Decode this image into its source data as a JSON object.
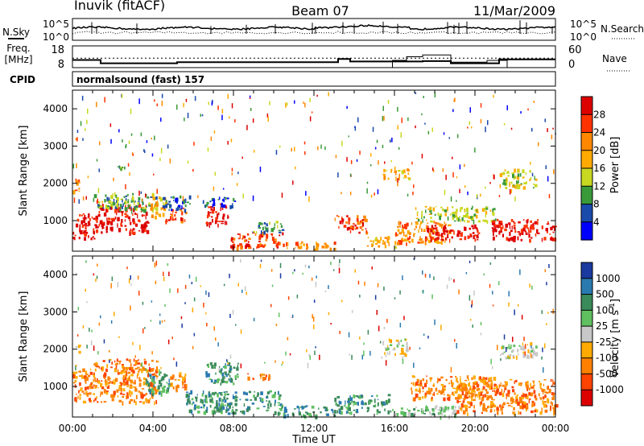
{
  "header": {
    "station": "Inuvik (fitACF)",
    "beam": "Beam 07",
    "date": "11/Mar/2009"
  },
  "chart_data": [
    {
      "type": "line",
      "panel": "noise",
      "left_label": "N.Sky",
      "right_label": "N.Search",
      "left_ticks": [
        "10^5",
        "10^0"
      ],
      "right_ticks": [
        "10^5",
        "10^0"
      ],
      "yscale": "log"
    },
    {
      "type": "line",
      "panel": "frequency",
      "left_label_line1": "Freq.",
      "left_label_line2": "[MHz]",
      "right_label": "Nave",
      "left_ticks": [
        18,
        8
      ],
      "right_ticks": [
        60,
        0
      ],
      "freq_ylim": [
        8,
        18
      ],
      "nave_ylim": [
        0,
        60
      ],
      "freq_series": {
        "x": [
          0,
          1.4,
          1.4,
          5.2,
          5.2,
          13.2,
          13.2,
          13.8,
          13.8,
          17.4,
          17.4,
          18.8,
          18.8,
          21.2,
          21.2,
          24
        ],
        "y": [
          11.5,
          11.5,
          10.0,
          10.0,
          10.5,
          10.5,
          12.0,
          12.0,
          10.8,
          10.8,
          11.0,
          11.0,
          10.0,
          10.0,
          11.8,
          11.8
        ]
      },
      "nave_series": {
        "x": [
          0,
          15.9,
          15.9,
          16.6,
          16.6,
          17.4,
          17.4,
          18.8,
          18.8,
          20.6,
          20.6,
          21.6,
          21.6,
          24
        ],
        "y": [
          0,
          0,
          20,
          20,
          30,
          30,
          35,
          35,
          15,
          15,
          20,
          20,
          0,
          0
        ]
      },
      "nave_reference": 26
    },
    {
      "type": "table",
      "panel": "cpid",
      "label": "CPID",
      "program": "normalsound (fast) 157"
    },
    {
      "type": "heatmap",
      "panel": "power",
      "ylabel": "Slant Range [km]",
      "yticks": [
        1000,
        2000,
        3000,
        4000
      ],
      "ylim": [
        180,
        4500
      ],
      "xlim": [
        0,
        24
      ],
      "colorbar": {
        "label": "Power [dB]",
        "ticks": [
          "28",
          "24",
          "20",
          "16",
          "12",
          "8",
          "4"
        ],
        "colors": [
          "#dd0000",
          "#ff3300",
          "#ff8800",
          "#ffaa00",
          "#c8d820",
          "#3a9a3a",
          "#1a4aaa",
          "#0000ff"
        ]
      },
      "regions": [
        {
          "t0": 0.0,
          "t1": 1.3,
          "r0": 500,
          "r1": 1200,
          "level": 0
        },
        {
          "t0": 0.0,
          "t1": 0.3,
          "r0": 1800,
          "r1": 2300,
          "level": 2
        },
        {
          "t0": 1.3,
          "t1": 3.8,
          "r0": 700,
          "r1": 1450,
          "level": 0
        },
        {
          "t0": 1.0,
          "t1": 4.2,
          "r0": 1300,
          "r1": 1750,
          "level": 5
        },
        {
          "t0": 3.8,
          "t1": 4.6,
          "r0": 1100,
          "r1": 1700,
          "level": 3
        },
        {
          "t0": 4.6,
          "t1": 5.6,
          "r0": 1000,
          "r1": 1400,
          "level": 1
        },
        {
          "t0": 4.4,
          "t1": 5.8,
          "r0": 1300,
          "r1": 1700,
          "level": 6
        },
        {
          "t0": 6.6,
          "t1": 7.7,
          "r0": 900,
          "r1": 1500,
          "level": 0
        },
        {
          "t0": 6.4,
          "t1": 8.1,
          "r0": 1400,
          "r1": 1650,
          "level": 6
        },
        {
          "t0": 7.8,
          "t1": 10.6,
          "r0": 300,
          "r1": 700,
          "level": 1
        },
        {
          "t0": 8.8,
          "t1": 10.4,
          "r0": 700,
          "r1": 1000,
          "level": 5
        },
        {
          "t0": 10.6,
          "t1": 13.0,
          "r0": 250,
          "r1": 450,
          "level": 2
        },
        {
          "t0": 13.0,
          "t1": 14.6,
          "r0": 700,
          "r1": 1150,
          "level": 1
        },
        {
          "t0": 14.6,
          "t1": 16.0,
          "r0": 300,
          "r1": 600,
          "level": 3
        },
        {
          "t0": 15.3,
          "t1": 16.7,
          "r0": 2100,
          "r1": 2400,
          "level": 3
        },
        {
          "t0": 16.0,
          "t1": 18.8,
          "r0": 400,
          "r1": 1000,
          "level": 2
        },
        {
          "t0": 17.5,
          "t1": 20.2,
          "r0": 500,
          "r1": 900,
          "level": 0
        },
        {
          "t0": 17.0,
          "t1": 21.0,
          "r0": 1000,
          "r1": 1400,
          "level": 4
        },
        {
          "t0": 20.8,
          "t1": 24.0,
          "r0": 500,
          "r1": 1050,
          "level": 0
        },
        {
          "t0": 21.2,
          "t1": 23.0,
          "r0": 1900,
          "r1": 2400,
          "level": 4
        },
        {
          "t0": 2.2,
          "t1": 2.6,
          "r0": 2400,
          "r1": 2500,
          "level": 5
        }
      ]
    },
    {
      "type": "heatmap",
      "panel": "velocity",
      "ylabel": "Slant Range [km]",
      "yticks": [
        1000,
        2000,
        3000,
        4000
      ],
      "ylim": [
        180,
        4500
      ],
      "xlim": [
        0,
        24
      ],
      "xlabel": "Time UT",
      "xticks": [
        "00:00",
        "04:00",
        "08:00",
        "12:00",
        "16:00",
        "20:00",
        "00:00"
      ],
      "colorbar": {
        "label": "Velocity [m s^-1]",
        "ticks": [
          "1000",
          "500",
          "100",
          "25",
          "-25",
          "-100",
          "-500",
          "-1000"
        ],
        "colors": [
          "#1a3aa0",
          "#2a7ab0",
          "#3a8a5a",
          "#60c060",
          "#c8c8c8",
          "#ffaa00",
          "#ff8000",
          "#ff4400",
          "#dd0000"
        ]
      },
      "regions": [
        {
          "t0": 0.0,
          "t1": 4.2,
          "r0": 600,
          "r1": 1500,
          "level": 6
        },
        {
          "t0": 1.0,
          "t1": 4.4,
          "r0": 1450,
          "r1": 1750,
          "level": 6
        },
        {
          "t0": 3.6,
          "t1": 4.8,
          "r0": 800,
          "r1": 1500,
          "level": 2
        },
        {
          "t0": 4.8,
          "t1": 5.6,
          "r0": 900,
          "r1": 1400,
          "level": 6
        },
        {
          "t0": 6.6,
          "t1": 8.2,
          "r0": 1100,
          "r1": 1650,
          "level": 2
        },
        {
          "t0": 5.6,
          "t1": 10.4,
          "r0": 300,
          "r1": 900,
          "level": 2
        },
        {
          "t0": 10.4,
          "t1": 13.0,
          "r0": 200,
          "r1": 500,
          "level": 2
        },
        {
          "t0": 13.0,
          "t1": 15.8,
          "r0": 300,
          "r1": 800,
          "level": 2
        },
        {
          "t0": 15.8,
          "t1": 19.2,
          "r0": 200,
          "r1": 500,
          "level": 3
        },
        {
          "t0": 15.4,
          "t1": 16.6,
          "r0": 1800,
          "r1": 2300,
          "level": 4
        },
        {
          "t0": 16.8,
          "t1": 21.0,
          "r0": 700,
          "r1": 1300,
          "level": 6
        },
        {
          "t0": 19.0,
          "t1": 24.0,
          "r0": 300,
          "r1": 1200,
          "level": 6
        },
        {
          "t0": 21.2,
          "t1": 23.0,
          "r0": 1800,
          "r1": 2200,
          "level": 4
        },
        {
          "t0": 8.6,
          "t1": 9.8,
          "r0": 1200,
          "r1": 1400,
          "level": 6
        },
        {
          "t0": 0.0,
          "t1": 0.3,
          "r0": 1900,
          "r1": 2200,
          "level": 4
        }
      ]
    }
  ]
}
